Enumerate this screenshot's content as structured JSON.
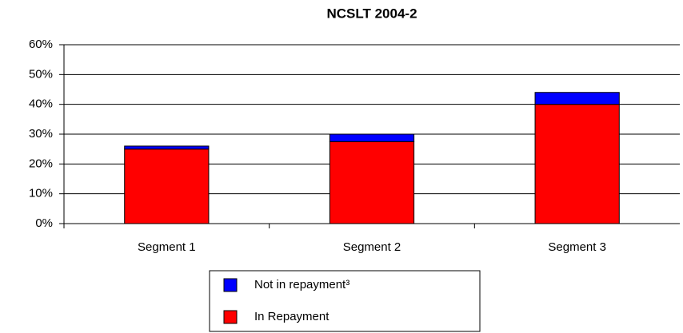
{
  "chart_data": {
    "type": "stacked_bar",
    "title": "NCSLT 2004-2",
    "categories": [
      "Segment 1",
      "Segment 2",
      "Segment 3"
    ],
    "series": [
      {
        "name": "In Repayment",
        "color": "#ff0000",
        "values": [
          25,
          27.5,
          40
        ]
      },
      {
        "name": "Not in repayment³",
        "color": "#0000ff",
        "values": [
          1,
          2.5,
          4
        ]
      }
    ],
    "ylim": [
      0,
      60
    ],
    "yticks": [
      {
        "value": 0,
        "label": "0%"
      },
      {
        "value": 10,
        "label": "10%"
      },
      {
        "value": 20,
        "label": "20%"
      },
      {
        "value": 30,
        "label": "30%"
      },
      {
        "value": 40,
        "label": "40%"
      },
      {
        "value": 50,
        "label": "50%"
      },
      {
        "value": 60,
        "label": "60%"
      }
    ],
    "grid": true
  }
}
